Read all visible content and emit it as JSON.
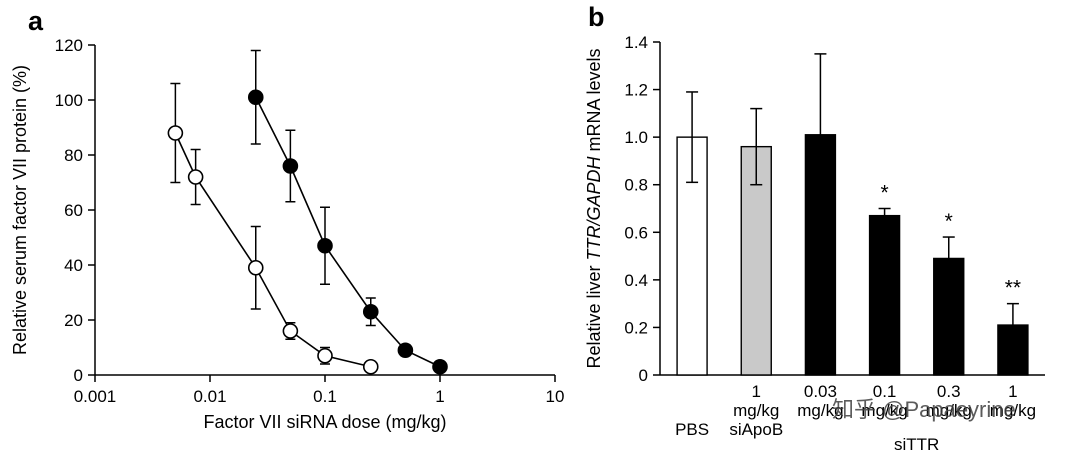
{
  "figure": {
    "panel_a_label": "a",
    "panel_b_label": "b",
    "watermark": "知乎 @Papaeyrine"
  },
  "chart_data": [
    {
      "type": "line",
      "panel": "a",
      "title": "",
      "xlabel": "Factor VII siRNA dose (mg/kg)",
      "ylabel": "Relative serum factor VII protein (%)",
      "xscale": "log",
      "xlim": [
        0.001,
        10
      ],
      "ylim": [
        0,
        120
      ],
      "xticks": [
        0.001,
        0.01,
        0.1,
        1,
        10
      ],
      "xtick_labels": [
        "0.001",
        "0.01",
        "0.1",
        "1",
        "10"
      ],
      "yticks": [
        0,
        20,
        40,
        60,
        80,
        100,
        120
      ],
      "grid": false,
      "legend": "none",
      "series": [
        {
          "name": "open circles",
          "marker": "open",
          "x": [
            0.005,
            0.0075,
            0.025,
            0.05,
            0.1,
            0.25
          ],
          "y": [
            88,
            72,
            39,
            16,
            7,
            3
          ],
          "yerr": [
            18,
            10,
            15,
            3,
            3,
            0
          ]
        },
        {
          "name": "filled circles",
          "marker": "filled",
          "x": [
            0.025,
            0.05,
            0.1,
            0.25,
            0.5,
            1
          ],
          "y": [
            101,
            76,
            47,
            23,
            9,
            3
          ],
          "yerr": [
            17,
            13,
            14,
            5,
            2,
            0
          ]
        }
      ]
    },
    {
      "type": "bar",
      "panel": "b",
      "title": "",
      "ylabel_parts": [
        {
          "text": "Relative liver ",
          "italic": false
        },
        {
          "text": "TTR/GAPDH",
          "italic": true
        },
        {
          "text": " mRNA levels",
          "italic": false
        }
      ],
      "ylim": [
        0,
        1.4
      ],
      "yticks": [
        0,
        0.2,
        0.4,
        0.6,
        0.8,
        1.0,
        1.2,
        1.4
      ],
      "ytick_labels": [
        "0",
        "0.2",
        "0.4",
        "0.6",
        "0.8",
        "1.0",
        "1.2",
        "1.4"
      ],
      "grid": false,
      "legend": "none",
      "bars": [
        {
          "label_lines": [
            "PBS"
          ],
          "label_start_row": 2,
          "value": 1.0,
          "yerr": 0.19,
          "fill": "#ffffff",
          "sig": ""
        },
        {
          "label_lines": [
            "1",
            "mg/kg",
            "siApoB"
          ],
          "label_start_row": 0,
          "value": 0.96,
          "yerr": 0.16,
          "fill": "#c9c9c9",
          "sig": ""
        },
        {
          "label_lines": [
            "0.03",
            "mg/kg"
          ],
          "label_start_row": 0,
          "value": 1.01,
          "yerr": 0.34,
          "fill": "#000000",
          "sig": ""
        },
        {
          "label_lines": [
            "0.1",
            "mg/kg"
          ],
          "label_start_row": 0,
          "value": 0.67,
          "yerr": 0.03,
          "fill": "#000000",
          "sig": "*"
        },
        {
          "label_lines": [
            "0.3",
            "mg/kg"
          ],
          "label_start_row": 0,
          "value": 0.49,
          "yerr": 0.09,
          "fill": "#000000",
          "sig": "*"
        },
        {
          "label_lines": [
            "1",
            "mg/kg"
          ],
          "label_start_row": 0,
          "value": 0.21,
          "yerr": 0.09,
          "fill": "#000000",
          "sig": "**"
        }
      ],
      "group_label": "siTTR",
      "group_span": [
        2,
        5
      ]
    }
  ]
}
